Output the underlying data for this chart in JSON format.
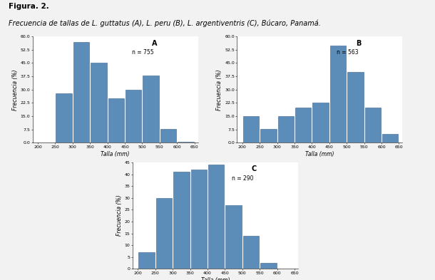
{
  "title_fig": "Figura. 2.",
  "subtitle_fig": "Frecuencia de tallas de L. guttatus (A), L. peru (B), L. argentiventris (C), Búcaro, Panamá.",
  "bar_color": "#5b8db8",
  "bar_edgecolor": "#3a6090",
  "background_color": "#f2f2f2",
  "subplot_bg": "#ffffff",
  "bins": [
    200,
    250,
    300,
    350,
    400,
    450,
    500,
    550,
    600,
    650
  ],
  "A": {
    "label": "A",
    "n_label": "n = 755",
    "values": [
      0.0,
      28.0,
      57.0,
      45.0,
      25.0,
      30.0,
      38.0,
      8.0,
      0.5
    ],
    "ylim": [
      0,
      60
    ],
    "yticks": [
      0.0,
      7.5,
      15.0,
      22.5,
      30.0,
      37.5,
      45.0,
      52.5,
      60.0
    ],
    "ytick_labels": [
      "0.0",
      "7.5",
      "15.0",
      "22.5",
      "30.0",
      "37.5",
      "45.0",
      "52.5",
      "60.0"
    ]
  },
  "B": {
    "label": "B",
    "n_label": "n = 563",
    "values": [
      15.0,
      8.0,
      15.0,
      20.0,
      22.5,
      55.0,
      40.0,
      20.0,
      5.0
    ],
    "ylim": [
      0,
      60
    ],
    "yticks": [
      0.0,
      7.5,
      15.0,
      22.5,
      30.0,
      37.5,
      45.0,
      52.5,
      60.0
    ],
    "ytick_labels": [
      "0.0",
      "7.5",
      "15.0",
      "22.5",
      "30.0",
      "37.5",
      "45.0",
      "52.5",
      "60.0"
    ]
  },
  "C": {
    "label": "C",
    "n_label": "n = 290",
    "values": [
      7.0,
      30.0,
      41.0,
      42.0,
      44.0,
      27.0,
      14.0,
      2.5,
      0.0
    ],
    "ylim": [
      0,
      45
    ],
    "yticks": [
      0,
      5,
      10,
      15,
      20,
      25,
      30,
      35,
      40,
      45
    ],
    "ytick_labels": [
      "0",
      "5",
      "10",
      "15",
      "20",
      "25",
      "30",
      "35",
      "40",
      "45"
    ]
  },
  "xlabel": "Talla (mm)",
  "ylabel": "Frecuencia (%)",
  "xticks": [
    200,
    250,
    300,
    350,
    400,
    450,
    500,
    550,
    600,
    650
  ],
  "xtick_labels": [
    "200",
    "250",
    "300",
    "350",
    "400",
    "450",
    "500",
    "550",
    "600",
    "650"
  ]
}
